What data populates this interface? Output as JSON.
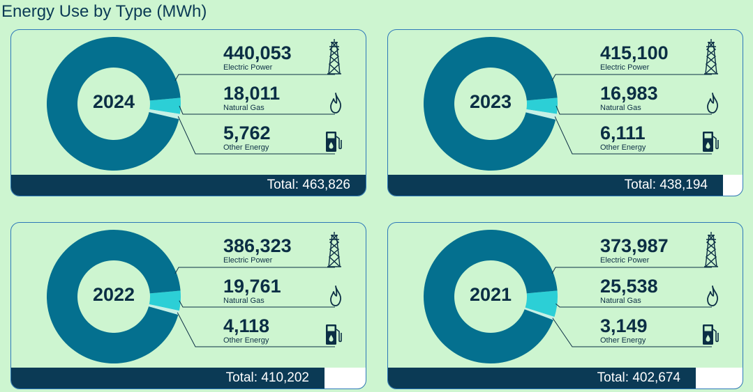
{
  "title": "Energy Use by Type (MWh)",
  "colors": {
    "electric": "#04708f",
    "gas": "#2ccfd6",
    "other": "#c6f0e6",
    "dark": "#0b3a55",
    "border": "#2c77b8",
    "background": "#cdf5d0"
  },
  "icons": [
    "transmission-tower-icon",
    "flame-icon",
    "fuel-pump-icon"
  ],
  "cards": [
    {
      "year": "2024",
      "electric": "440,053",
      "electric_label": "Electric Power",
      "gas": "18,011",
      "gas_label": "Natural Gas",
      "other": "5,762",
      "other_label": "Other Energy",
      "total": "Total: 463,826"
    },
    {
      "year": "2023",
      "electric": "415,100",
      "electric_label": "Electric Power",
      "gas": "16,983",
      "gas_label": "Natural Gas",
      "other": "6,111",
      "other_label": "Other Energy",
      "total": "Total: 438,194"
    },
    {
      "year": "2022",
      "electric": "386,323",
      "electric_label": "Electric Power",
      "gas": "19,761",
      "gas_label": "Natural Gas",
      "other": "4,118",
      "other_label": "Other Energy",
      "total": "Total: 410,202"
    },
    {
      "year": "2021",
      "electric": "373,987",
      "electric_label": "Electric Power",
      "gas": "25,538",
      "gas_label": "Natural Gas",
      "other": "3,149",
      "other_label": "Other Energy",
      "total": "Total: 402,674"
    }
  ],
  "chart_data": [
    {
      "type": "pie",
      "year": "2024",
      "categories": [
        "Electric Power",
        "Natural Gas",
        "Other Energy"
      ],
      "values": [
        440053,
        18011,
        5762
      ],
      "total": 463826,
      "total_progress": 1.0
    },
    {
      "type": "pie",
      "year": "2023",
      "categories": [
        "Electric Power",
        "Natural Gas",
        "Other Energy"
      ],
      "values": [
        415100,
        16983,
        6111
      ],
      "total": 438194,
      "total_progress": 0.945
    },
    {
      "type": "pie",
      "year": "2022",
      "categories": [
        "Electric Power",
        "Natural Gas",
        "Other Energy"
      ],
      "values": [
        386323,
        19761,
        4118
      ],
      "total": 410202,
      "total_progress": 0.884
    },
    {
      "type": "pie",
      "year": "2021",
      "categories": [
        "Electric Power",
        "Natural Gas",
        "Other Energy"
      ],
      "values": [
        373987,
        25538,
        3149
      ],
      "total": 402674,
      "total_progress": 0.868
    }
  ]
}
